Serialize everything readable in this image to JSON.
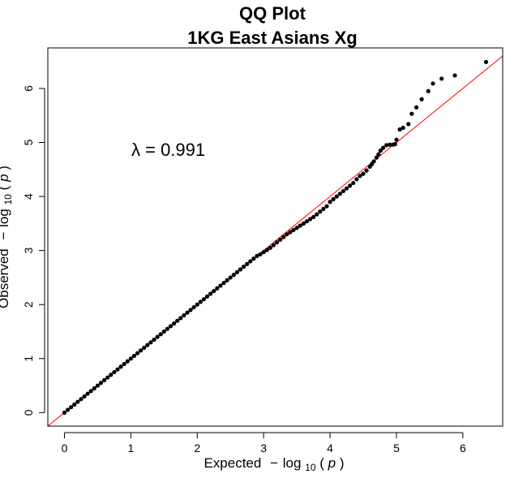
{
  "chart_data": {
    "type": "scatter",
    "title": "QQ Plot",
    "subtitle": "1KG East Asians Xg",
    "xlabel": {
      "prefix": "Expected",
      "minus": "−",
      "log": "log",
      "sub": "10",
      "open": "(",
      "var": "p",
      "close": ")"
    },
    "ylabel": {
      "prefix": "Observed",
      "minus": "−",
      "log": "log",
      "sub": "10",
      "open": "(",
      "var": "p",
      "close": ")"
    },
    "annotation": "λ = 0.991",
    "xlim": [
      -0.25,
      6.6
    ],
    "ylim": [
      -0.25,
      6.75
    ],
    "x_ticks": [
      "0",
      "1",
      "2",
      "3",
      "4",
      "5",
      "6"
    ],
    "y_ticks": [
      "0",
      "1",
      "2",
      "3",
      "4",
      "5",
      "6"
    ],
    "grid": false,
    "reference_line": {
      "slope": 1,
      "intercept": 0,
      "color": "#ff0000"
    },
    "point_color": "#000000",
    "series": [
      {
        "x": [
          0.0,
          0.05,
          0.1,
          0.15,
          0.2,
          0.25,
          0.3,
          0.35,
          0.4,
          0.45,
          0.5,
          0.55,
          0.6,
          0.65,
          0.7,
          0.75,
          0.8,
          0.85,
          0.9,
          0.95,
          1.0,
          1.05,
          1.1,
          1.15,
          1.2,
          1.25,
          1.3,
          1.35,
          1.4,
          1.45,
          1.5,
          1.55,
          1.6,
          1.65,
          1.7,
          1.75,
          1.8,
          1.85,
          1.9,
          1.95,
          2.0,
          2.05,
          2.1,
          2.15,
          2.2,
          2.25,
          2.3,
          2.35,
          2.4,
          2.45,
          2.5,
          2.55,
          2.6,
          2.65,
          2.7,
          2.75,
          2.8,
          2.85,
          2.9,
          2.95,
          3.0,
          3.05,
          3.1,
          3.15,
          3.2,
          3.25,
          3.3,
          3.35,
          3.4,
          3.45,
          3.5,
          3.55,
          3.6,
          3.65,
          3.7,
          3.75,
          3.8,
          3.85,
          3.9,
          3.95,
          4.0,
          4.05,
          4.1,
          4.15,
          4.2,
          4.25,
          4.3,
          4.35,
          4.4,
          4.45,
          4.5,
          4.55,
          4.6,
          4.63,
          4.66,
          4.7,
          4.73,
          4.76,
          4.8,
          4.85,
          4.9,
          4.95,
          4.98,
          5.0,
          5.05,
          5.1,
          5.18,
          5.23,
          5.3,
          5.38,
          5.48,
          5.55,
          5.68,
          5.88,
          6.35
        ],
        "y": [
          0.0,
          0.05,
          0.1,
          0.15,
          0.2,
          0.25,
          0.3,
          0.35,
          0.4,
          0.45,
          0.5,
          0.55,
          0.6,
          0.65,
          0.7,
          0.75,
          0.8,
          0.85,
          0.9,
          0.95,
          1.0,
          1.05,
          1.1,
          1.15,
          1.2,
          1.25,
          1.3,
          1.35,
          1.4,
          1.45,
          1.5,
          1.55,
          1.6,
          1.65,
          1.7,
          1.75,
          1.8,
          1.85,
          1.9,
          1.95,
          2.0,
          2.05,
          2.1,
          2.15,
          2.2,
          2.25,
          2.3,
          2.35,
          2.4,
          2.45,
          2.5,
          2.55,
          2.6,
          2.65,
          2.7,
          2.75,
          2.8,
          2.85,
          2.9,
          2.93,
          2.97,
          3.01,
          3.05,
          3.1,
          3.15,
          3.2,
          3.25,
          3.3,
          3.34,
          3.38,
          3.42,
          3.46,
          3.5,
          3.54,
          3.58,
          3.62,
          3.67,
          3.72,
          3.77,
          3.82,
          3.9,
          3.95,
          4.0,
          4.05,
          4.1,
          4.15,
          4.2,
          4.25,
          4.32,
          4.38,
          4.42,
          4.48,
          4.55,
          4.6,
          4.65,
          4.72,
          4.78,
          4.85,
          4.9,
          4.95,
          4.96,
          4.96,
          4.97,
          5.05,
          5.24,
          5.27,
          5.34,
          5.53,
          5.65,
          5.8,
          5.95,
          6.09,
          6.18,
          6.24,
          6.49
        ]
      }
    ]
  }
}
